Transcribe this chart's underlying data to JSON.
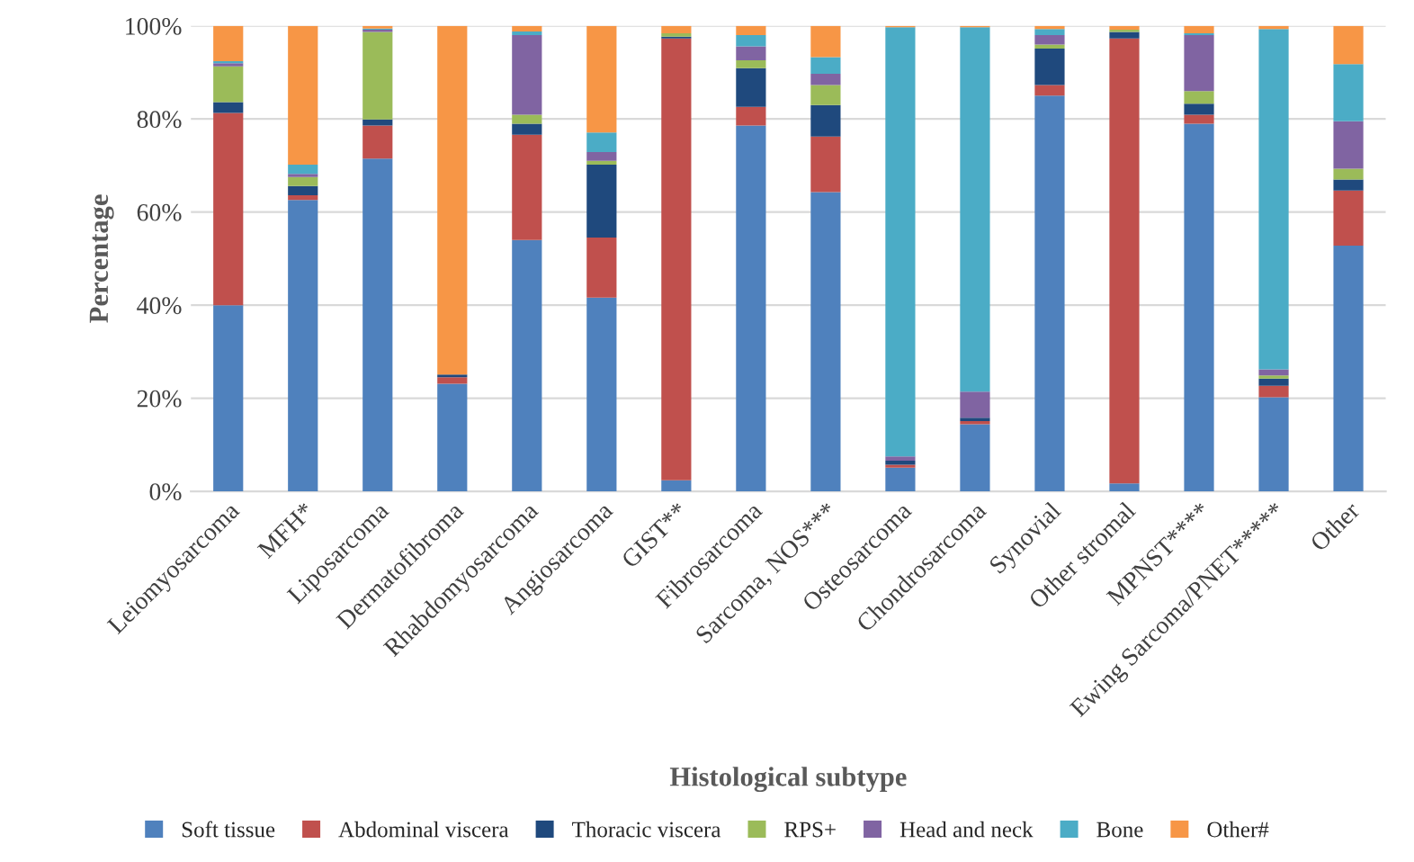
{
  "chart_data": {
    "type": "bar",
    "stacked": true,
    "xlabel": "Histological subtype",
    "ylabel": "Percentage",
    "categories": [
      "Leiomyosarcoma",
      "MFH*",
      "Liposarcoma",
      "Dermatofibroma",
      "Rhabdomyosarcoma",
      "Angiosarcoma",
      "GIST**",
      "Fibrosarcoma",
      "Sarcoma, NOS***",
      "Osteosarcoma",
      "Chondrosarcoma",
      "Synovial",
      "Other stromal",
      "MPNST****",
      "Ewing Sarcoma/PNET*****",
      "Other"
    ],
    "series": [
      {
        "name": "Soft tissue",
        "color": "#4f81bd",
        "values": [
          40,
          62.6,
          71.5,
          23.1,
          54,
          41.6,
          2.4,
          78.6,
          64.3,
          5.1,
          14.4,
          85,
          1.7,
          79,
          20.2,
          52.8
        ]
      },
      {
        "name": "Abdominal viscera",
        "color": "#c0504d",
        "values": [
          41.3,
          1,
          7.1,
          1.4,
          22.6,
          12.9,
          94.9,
          4,
          11.9,
          0.6,
          0.7,
          2.3,
          95.6,
          1.9,
          2.5,
          11.8
        ]
      },
      {
        "name": "Thoracic viscera",
        "color": "#1f497d",
        "values": [
          2.3,
          2,
          1.3,
          0.6,
          2.4,
          15.7,
          0.4,
          8.3,
          6.8,
          0.9,
          0.7,
          7.8,
          1.4,
          2.4,
          1.5,
          2.4
        ]
      },
      {
        "name": "RPS+",
        "color": "#9bbb59",
        "values": [
          7.7,
          1.9,
          18.8,
          0,
          1.9,
          0.8,
          0.7,
          1.7,
          4.3,
          0,
          0,
          0.9,
          0.5,
          2.7,
          0.7,
          2.3
        ]
      },
      {
        "name": "Head and neck",
        "color": "#8064a2",
        "values": [
          0.7,
          0.7,
          0.5,
          0,
          17.1,
          1.9,
          0,
          3,
          2.4,
          0.9,
          5.6,
          2,
          0,
          12,
          1.3,
          10.2
        ]
      },
      {
        "name": "Bone",
        "color": "#4bacc6",
        "values": [
          0.4,
          2,
          0.2,
          0,
          0.8,
          4.2,
          0,
          2.4,
          3.6,
          92.2,
          78.3,
          1.3,
          0,
          0.4,
          73.1,
          12.3
        ]
      },
      {
        "name": "Other#",
        "color": "#f79646",
        "values": [
          7.6,
          29.8,
          0.6,
          74.9,
          1.2,
          22.9,
          1.6,
          2,
          6.7,
          0.3,
          0.3,
          0.7,
          0.8,
          1.6,
          0.7,
          8.2
        ]
      }
    ],
    "ylim": [
      0,
      100
    ],
    "yticks": [
      {
        "value": 0,
        "label": "0%"
      },
      {
        "value": 20,
        "label": "20%"
      },
      {
        "value": 40,
        "label": "40%"
      },
      {
        "value": 60,
        "label": "60%"
      },
      {
        "value": 80,
        "label": "80%"
      },
      {
        "value": 100,
        "label": "100%"
      }
    ],
    "grid": "y",
    "legend": "bottom"
  }
}
